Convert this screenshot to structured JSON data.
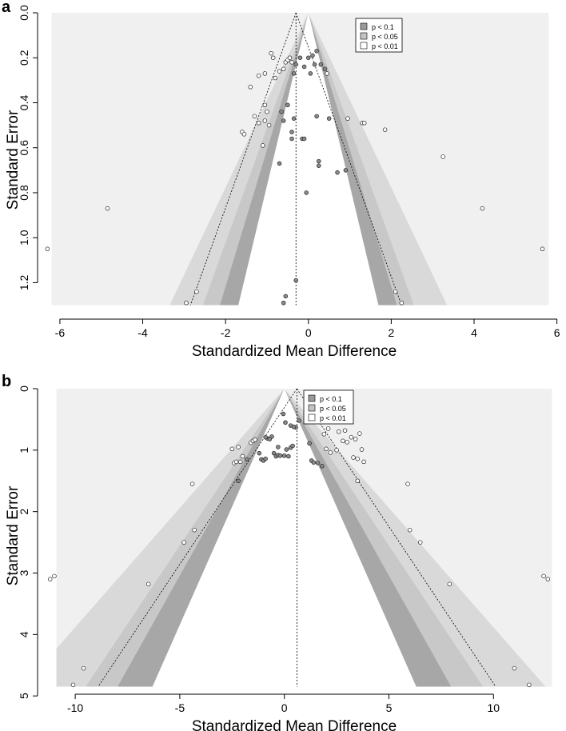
{
  "figure": {
    "panels": [
      {
        "label": "a"
      },
      {
        "label": "b"
      }
    ]
  },
  "chart_data": [
    {
      "type": "scatter",
      "subtype": "contour-enhanced funnel plot",
      "panel": "a",
      "xlabel": "Standardized Mean Difference",
      "ylabel": "Standard Error",
      "xlim": [
        -6.5,
        6.2
      ],
      "ylim": [
        0,
        1.33
      ],
      "y_inverted": true,
      "xticks": [
        -6,
        -4,
        -2,
        0,
        2,
        4,
        6
      ],
      "yticks": [
        0.0,
        0.2,
        0.4,
        0.6,
        0.8,
        1.0,
        1.2
      ],
      "background_region": {
        "x": [
          -6.2,
          5.8
        ],
        "y": [
          0,
          1.3
        ]
      },
      "center_estimate": -0.3,
      "contour_center": 0,
      "legend": {
        "position": "top-right",
        "entries": [
          "p < 0.1",
          "p < 0.05",
          "p < 0.01"
        ]
      },
      "legend_colors": [
        "#9a9a9a",
        "#c3c3c3",
        "#ffffff"
      ],
      "colors": {
        "background": "#f0f0f0",
        "band_01": "#a7a7a7",
        "band_005": "#c8c8c8",
        "band_001": "#d9d9d9",
        "inner": "#ffffff",
        "point": "#8a8a8a"
      },
      "points": [
        [
          -6.3,
          1.05
        ],
        [
          -4.85,
          0.87
        ],
        [
          4.2,
          0.87
        ],
        [
          5.65,
          1.05
        ],
        [
          3.25,
          0.64
        ],
        [
          -2.95,
          1.29
        ],
        [
          -2.7,
          1.24
        ],
        [
          2.1,
          1.24
        ],
        [
          2.25,
          1.29
        ],
        [
          -0.6,
          1.29
        ],
        [
          -0.55,
          1.26
        ],
        [
          -0.3,
          1.19
        ],
        [
          -1.6,
          0.53
        ],
        [
          -1.55,
          0.54
        ],
        [
          -1.1,
          0.59
        ],
        [
          -1.4,
          0.33
        ],
        [
          -1.3,
          0.46
        ],
        [
          -1.2,
          0.49
        ],
        [
          -1.05,
          0.48
        ],
        [
          -1.0,
          0.44
        ],
        [
          -1.05,
          0.41
        ],
        [
          -0.95,
          0.5
        ],
        [
          -0.8,
          0.29
        ],
        [
          -0.7,
          0.26
        ],
        [
          -0.6,
          0.25
        ],
        [
          -0.55,
          0.22
        ],
        [
          -0.5,
          0.21
        ],
        [
          -0.45,
          0.2
        ],
        [
          -0.4,
          0.22
        ],
        [
          -0.35,
          0.27
        ],
        [
          -0.3,
          0.23
        ],
        [
          -0.9,
          0.18
        ],
        [
          -0.85,
          0.2
        ],
        [
          -1.2,
          0.28
        ],
        [
          -1.05,
          0.27
        ],
        [
          -0.2,
          0.2
        ],
        [
          -0.1,
          0.24
        ],
        [
          0.0,
          0.2
        ],
        [
          0.1,
          0.19
        ],
        [
          0.15,
          0.23
        ],
        [
          0.2,
          0.17
        ],
        [
          0.05,
          0.27
        ],
        [
          0.3,
          0.23
        ],
        [
          0.4,
          0.25
        ],
        [
          0.45,
          0.27
        ],
        [
          -0.65,
          0.44
        ],
        [
          -0.6,
          0.48
        ],
        [
          -0.5,
          0.41
        ],
        [
          -0.35,
          0.47
        ],
        [
          -0.7,
          0.67
        ],
        [
          -0.4,
          0.53
        ],
        [
          -0.4,
          0.56
        ],
        [
          -0.15,
          0.56
        ],
        [
          -0.1,
          0.56
        ],
        [
          -0.05,
          0.8
        ],
        [
          0.2,
          0.46
        ],
        [
          0.5,
          0.47
        ],
        [
          0.7,
          0.71
        ],
        [
          0.9,
          0.7
        ],
        [
          0.95,
          0.47
        ],
        [
          1.3,
          0.49
        ],
        [
          1.35,
          0.49
        ],
        [
          1.85,
          0.52
        ],
        [
          0.25,
          0.66
        ],
        [
          0.25,
          0.68
        ]
      ]
    },
    {
      "type": "scatter",
      "subtype": "contour-enhanced funnel plot",
      "panel": "b",
      "xlabel": "Standardized Mean Difference",
      "ylabel": "Standard Error",
      "xlim": [
        -11.8,
        13.2
      ],
      "ylim": [
        0,
        4.92
      ],
      "y_inverted": true,
      "xticks": [
        -10,
        -5,
        0,
        5,
        10
      ],
      "yticks": [
        0,
        1,
        2,
        3,
        4,
        5
      ],
      "background_region": {
        "x": [
          -10.9,
          12.8
        ],
        "y": [
          0,
          4.85
        ]
      },
      "center_estimate": 0.6,
      "contour_center": 0,
      "legend": {
        "position": "top-center",
        "entries": [
          "p < 0.1",
          "p < 0.05",
          "p < 0.01"
        ]
      },
      "legend_colors": [
        "#9a9a9a",
        "#c3c3c3",
        "#ffffff"
      ],
      "colors": {
        "background": "#f0f0f0",
        "band_01": "#a7a7a7",
        "band_005": "#c8c8c8",
        "band_001": "#d9d9d9",
        "inner": "#ffffff",
        "point": "#8a8a8a"
      },
      "points": [
        [
          -11.2,
          3.1
        ],
        [
          -11.0,
          3.05
        ],
        [
          12.4,
          3.05
        ],
        [
          12.6,
          3.1
        ],
        [
          -10.1,
          4.82
        ],
        [
          -9.6,
          4.55
        ],
        [
          11.0,
          4.55
        ],
        [
          11.7,
          4.82
        ],
        [
          -6.5,
          3.18
        ],
        [
          7.9,
          3.18
        ],
        [
          -4.8,
          2.5
        ],
        [
          -4.3,
          2.3
        ],
        [
          6.0,
          2.3
        ],
        [
          6.5,
          2.5
        ],
        [
          -4.4,
          1.55
        ],
        [
          5.9,
          1.55
        ],
        [
          -2.2,
          1.5
        ],
        [
          3.5,
          1.5
        ],
        [
          -2.5,
          0.98
        ],
        [
          -2.4,
          1.21
        ],
        [
          -2.3,
          1.19
        ],
        [
          -2.2,
          0.95
        ],
        [
          -2.1,
          1.19
        ],
        [
          -2.0,
          1.1
        ],
        [
          -1.8,
          1.15
        ],
        [
          -1.6,
          0.88
        ],
        [
          -1.5,
          0.85
        ],
        [
          -1.4,
          0.83
        ],
        [
          -1.2,
          1.05
        ],
        [
          -1.1,
          1.15
        ],
        [
          -1.0,
          1.17
        ],
        [
          -0.9,
          1.14
        ],
        [
          -0.8,
          0.81
        ],
        [
          -0.6,
          0.78
        ],
        [
          -0.5,
          1.05
        ],
        [
          -0.4,
          1.1
        ],
        [
          -0.3,
          1.08
        ],
        [
          -0.2,
          1.09
        ],
        [
          0.0,
          1.09
        ],
        [
          0.1,
          0.99
        ],
        [
          0.2,
          1.1
        ],
        [
          0.3,
          0.96
        ],
        [
          0.4,
          0.93
        ],
        [
          -0.9,
          0.79
        ],
        [
          -0.7,
          0.82
        ],
        [
          -0.05,
          0.41
        ],
        [
          0.05,
          0.55
        ],
        [
          0.3,
          0.6
        ],
        [
          0.55,
          0.63
        ],
        [
          0.7,
          0.52
        ],
        [
          -0.3,
          0.95
        ],
        [
          0.45,
          0.62
        ],
        [
          1.2,
          0.89
        ],
        [
          1.3,
          1.17
        ],
        [
          1.4,
          1.2
        ],
        [
          1.6,
          1.21
        ],
        [
          1.8,
          1.26
        ],
        [
          2.0,
          0.98
        ],
        [
          2.2,
          1.04
        ],
        [
          2.6,
          0.7
        ],
        [
          2.8,
          0.85
        ],
        [
          3.0,
          0.87
        ],
        [
          3.2,
          0.79
        ],
        [
          3.4,
          0.82
        ],
        [
          3.6,
          0.73
        ],
        [
          3.7,
          0.99
        ],
        [
          3.8,
          1.19
        ],
        [
          3.5,
          1.14
        ],
        [
          3.3,
          1.12
        ],
        [
          2.5,
          1.0
        ],
        [
          2.9,
          0.68
        ],
        [
          1.9,
          0.74
        ],
        [
          2.1,
          0.65
        ]
      ]
    }
  ]
}
